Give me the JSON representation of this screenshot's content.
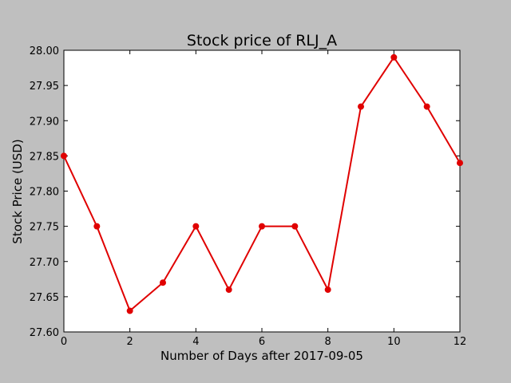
{
  "chart_data": {
    "type": "line",
    "title": "Stock price of RLJ_A",
    "xlabel": "Number of Days after 2017-09-05",
    "ylabel": "Stock Price (USD)",
    "xlim": [
      0,
      12
    ],
    "ylim": [
      27.6,
      28.0
    ],
    "xticks": [
      "0",
      "2",
      "4",
      "6",
      "8",
      "10",
      "12"
    ],
    "yticks": [
      "27.60",
      "27.65",
      "27.70",
      "27.75",
      "27.80",
      "27.85",
      "27.90",
      "27.95",
      "28.00"
    ],
    "grid": false,
    "series": [
      {
        "color": "#e00000",
        "marker": "circle",
        "x": [
          0,
          1,
          2,
          3,
          4,
          5,
          6,
          7,
          8,
          9,
          10,
          11,
          12
        ],
        "y": [
          27.85,
          27.75,
          27.63,
          27.67,
          27.75,
          27.66,
          27.75,
          27.75,
          27.66,
          27.92,
          27.99,
          27.92,
          27.84
        ]
      }
    ]
  }
}
